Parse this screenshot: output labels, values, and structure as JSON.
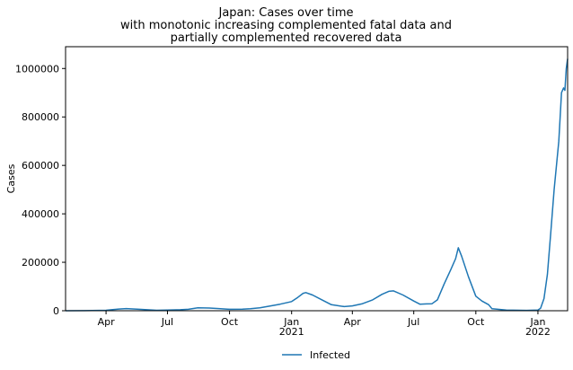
{
  "chart_data": {
    "type": "line",
    "title": [
      "Japan: Cases over time",
      "with monotonic increasing complemented fatal data and",
      "partially complemented recovered data"
    ],
    "xlabel": "",
    "ylabel": "Cases",
    "xlim": [
      "2020-02-01",
      "2022-02-14"
    ],
    "ylim": [
      0,
      1090000
    ],
    "grid": false,
    "legend_position": "bottom-center",
    "x_ticks": [
      {
        "date": "2020-04-01",
        "label": "Apr",
        "sublabel": ""
      },
      {
        "date": "2020-07-01",
        "label": "Jul",
        "sublabel": ""
      },
      {
        "date": "2020-10-01",
        "label": "Oct",
        "sublabel": ""
      },
      {
        "date": "2021-01-01",
        "label": "Jan",
        "sublabel": "2021"
      },
      {
        "date": "2021-04-01",
        "label": "Apr",
        "sublabel": ""
      },
      {
        "date": "2021-07-01",
        "label": "Jul",
        "sublabel": ""
      },
      {
        "date": "2021-10-01",
        "label": "Oct",
        "sublabel": ""
      },
      {
        "date": "2022-01-01",
        "label": "Jan",
        "sublabel": "2022"
      }
    ],
    "y_ticks": [
      {
        "value": 0,
        "label": "0"
      },
      {
        "value": 200000,
        "label": "200000"
      },
      {
        "value": 400000,
        "label": "400000"
      },
      {
        "value": 600000,
        "label": "600000"
      },
      {
        "value": 800000,
        "label": "800000"
      },
      {
        "value": 1000000,
        "label": "1000000"
      }
    ],
    "series": [
      {
        "name": "Infected",
        "color": "#1f77b4",
        "points": [
          [
            "2020-02-01",
            0
          ],
          [
            "2020-03-01",
            500
          ],
          [
            "2020-04-01",
            2000
          ],
          [
            "2020-04-20",
            7000
          ],
          [
            "2020-05-01",
            9000
          ],
          [
            "2020-05-20",
            6000
          ],
          [
            "2020-06-15",
            2000
          ],
          [
            "2020-07-01",
            2500
          ],
          [
            "2020-07-20",
            4000
          ],
          [
            "2020-08-01",
            6000
          ],
          [
            "2020-08-15",
            12000
          ],
          [
            "2020-09-01",
            11000
          ],
          [
            "2020-09-15",
            9000
          ],
          [
            "2020-10-01",
            6000
          ],
          [
            "2020-10-20",
            6500
          ],
          [
            "2020-11-01",
            8000
          ],
          [
            "2020-11-15",
            12000
          ],
          [
            "2020-12-01",
            20000
          ],
          [
            "2020-12-15",
            27000
          ],
          [
            "2021-01-01",
            38000
          ],
          [
            "2021-01-10",
            55000
          ],
          [
            "2021-01-18",
            72000
          ],
          [
            "2021-01-22",
            75000
          ],
          [
            "2021-02-01",
            65000
          ],
          [
            "2021-02-15",
            45000
          ],
          [
            "2021-03-01",
            25000
          ],
          [
            "2021-03-20",
            17000
          ],
          [
            "2021-04-01",
            20000
          ],
          [
            "2021-04-15",
            28000
          ],
          [
            "2021-05-01",
            45000
          ],
          [
            "2021-05-15",
            68000
          ],
          [
            "2021-05-25",
            80000
          ],
          [
            "2021-06-01",
            82000
          ],
          [
            "2021-06-15",
            65000
          ],
          [
            "2021-07-01",
            40000
          ],
          [
            "2021-07-10",
            27000
          ],
          [
            "2021-07-20",
            28000
          ],
          [
            "2021-07-28",
            29000
          ],
          [
            "2021-08-05",
            45000
          ],
          [
            "2021-08-15",
            110000
          ],
          [
            "2021-08-25",
            170000
          ],
          [
            "2021-09-01",
            215000
          ],
          [
            "2021-09-05",
            260000
          ],
          [
            "2021-09-10",
            225000
          ],
          [
            "2021-09-20",
            140000
          ],
          [
            "2021-10-01",
            60000
          ],
          [
            "2021-10-10",
            40000
          ],
          [
            "2021-10-20",
            25000
          ],
          [
            "2021-10-25",
            8000
          ],
          [
            "2021-11-15",
            3000
          ],
          [
            "2021-12-15",
            1500
          ],
          [
            "2022-01-01",
            3000
          ],
          [
            "2022-01-05",
            10000
          ],
          [
            "2022-01-10",
            50000
          ],
          [
            "2022-01-15",
            150000
          ],
          [
            "2022-01-20",
            320000
          ],
          [
            "2022-01-25",
            500000
          ],
          [
            "2022-02-01",
            700000
          ],
          [
            "2022-02-05",
            900000
          ],
          [
            "2022-02-08",
            920000
          ],
          [
            "2022-02-10",
            910000
          ],
          [
            "2022-02-12",
            1000000
          ],
          [
            "2022-02-14",
            1040000
          ]
        ]
      }
    ]
  }
}
